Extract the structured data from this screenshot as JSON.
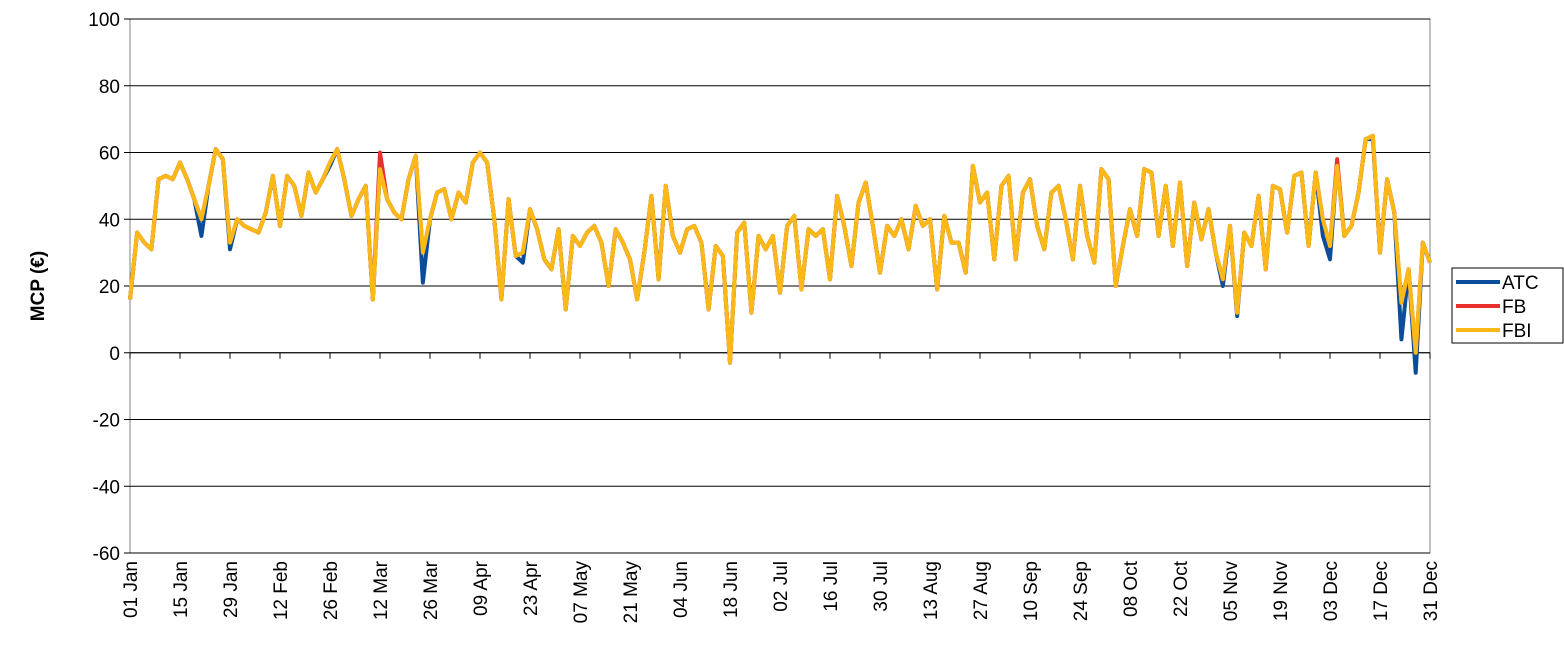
{
  "chart_data": {
    "type": "line",
    "y_label": "MCP (€)",
    "categories": [
      "01 Jan",
      null,
      null,
      null,
      null,
      null,
      null,
      "15 Jan",
      null,
      null,
      null,
      null,
      null,
      null,
      "29 Jan",
      null,
      null,
      null,
      null,
      null,
      null,
      "12 Feb",
      null,
      null,
      null,
      null,
      null,
      null,
      "26 Feb",
      null,
      null,
      null,
      null,
      null,
      null,
      "12 Mar",
      null,
      null,
      null,
      null,
      null,
      null,
      "26 Mar",
      null,
      null,
      null,
      null,
      null,
      null,
      "09 Apr",
      null,
      null,
      null,
      null,
      null,
      null,
      "23 Apr",
      null,
      null,
      null,
      null,
      null,
      null,
      "07 May",
      null,
      null,
      null,
      null,
      null,
      null,
      "21 May",
      null,
      null,
      null,
      null,
      null,
      null,
      "04 Jun",
      null,
      null,
      null,
      null,
      null,
      null,
      "18 Jun",
      null,
      null,
      null,
      null,
      null,
      null,
      "02 Jul",
      null,
      null,
      null,
      null,
      null,
      null,
      "16 Jul",
      null,
      null,
      null,
      null,
      null,
      null,
      "30 Jul",
      null,
      null,
      null,
      null,
      null,
      null,
      "13 Aug",
      null,
      null,
      null,
      null,
      null,
      null,
      "27 Aug",
      null,
      null,
      null,
      null,
      null,
      null,
      "10 Sep",
      null,
      null,
      null,
      null,
      null,
      null,
      "24 Sep",
      null,
      null,
      null,
      null,
      null,
      null,
      "08 Oct",
      null,
      null,
      null,
      null,
      null,
      null,
      "22 Oct",
      null,
      null,
      null,
      null,
      null,
      null,
      "05 Nov",
      null,
      null,
      null,
      null,
      null,
      null,
      "19 Nov",
      null,
      null,
      null,
      null,
      null,
      null,
      "03 Dec",
      null,
      null,
      null,
      null,
      null,
      null,
      "17 Dec",
      null,
      null,
      null,
      null,
      null,
      null,
      "31 Dec"
    ],
    "series": [
      {
        "name": "ATC",
        "color": "#0b4c9b",
        "values": [
          16,
          36,
          33,
          31,
          52,
          53,
          52,
          57,
          52,
          46,
          35,
          50,
          61,
          58,
          31,
          40,
          38,
          37,
          36,
          42,
          53,
          38,
          53,
          50,
          41,
          54,
          48,
          52,
          56,
          61,
          52,
          41,
          46,
          50,
          16,
          55,
          46,
          42,
          40,
          52,
          59,
          21,
          40,
          48,
          49,
          40,
          48,
          45,
          57,
          60,
          57,
          40,
          16,
          46,
          29,
          27,
          43,
          37,
          28,
          25,
          37,
          13,
          35,
          32,
          36,
          38,
          33,
          20,
          37,
          33,
          28,
          16,
          30,
          47,
          22,
          50,
          35,
          30,
          37,
          38,
          33,
          13,
          32,
          29,
          -3,
          36,
          39,
          12,
          35,
          31,
          35,
          18,
          38,
          41,
          19,
          37,
          35,
          37,
          22,
          47,
          38,
          26,
          45,
          51,
          38,
          24,
          38,
          35,
          40,
          31,
          44,
          38,
          40,
          19,
          41,
          33,
          33,
          24,
          56,
          45,
          48,
          28,
          50,
          53,
          28,
          48,
          52,
          38,
          31,
          48,
          50,
          40,
          28,
          50,
          35,
          27,
          55,
          52,
          20,
          32,
          43,
          35,
          55,
          54,
          35,
          50,
          32,
          51,
          26,
          45,
          34,
          43,
          30,
          20,
          38,
          11,
          36,
          32,
          47,
          25,
          50,
          49,
          36,
          53,
          54,
          32,
          54,
          35,
          28,
          57,
          35,
          38,
          48,
          64,
          64,
          30,
          52,
          42,
          4,
          25,
          -6,
          33,
          27
        ]
      },
      {
        "name": "FB",
        "color": "#e8312f",
        "values": [
          16,
          36,
          33,
          31,
          52,
          53,
          52,
          57,
          52,
          46,
          40,
          50,
          61,
          58,
          33,
          40,
          38,
          37,
          36,
          42,
          53,
          38,
          53,
          50,
          41,
          54,
          48,
          52,
          57,
          61,
          52,
          41,
          46,
          50,
          16,
          60,
          46,
          42,
          40,
          52,
          59,
          30,
          40,
          48,
          49,
          40,
          48,
          45,
          57,
          60,
          57,
          40,
          16,
          46,
          29,
          30,
          43,
          37,
          28,
          25,
          37,
          13,
          35,
          32,
          36,
          38,
          33,
          20,
          37,
          33,
          28,
          16,
          30,
          47,
          22,
          50,
          35,
          30,
          37,
          38,
          33,
          13,
          32,
          29,
          -3,
          36,
          39,
          12,
          35,
          31,
          35,
          18,
          38,
          41,
          19,
          37,
          35,
          37,
          22,
          47,
          38,
          26,
          45,
          51,
          38,
          24,
          38,
          35,
          40,
          31,
          44,
          38,
          40,
          19,
          41,
          33,
          33,
          24,
          56,
          45,
          48,
          28,
          50,
          53,
          28,
          48,
          52,
          38,
          31,
          48,
          50,
          40,
          28,
          50,
          35,
          27,
          55,
          52,
          20,
          32,
          43,
          35,
          55,
          54,
          35,
          50,
          32,
          51,
          26,
          45,
          34,
          43,
          30,
          22,
          38,
          12,
          36,
          32,
          47,
          25,
          50,
          49,
          36,
          53,
          54,
          32,
          54,
          40,
          32,
          58,
          35,
          38,
          48,
          64,
          65,
          30,
          52,
          42,
          15,
          25,
          0,
          33,
          27
        ]
      },
      {
        "name": "FBI",
        "color": "#fbb917",
        "values": [
          16,
          36,
          33,
          31,
          52,
          53,
          52,
          57,
          52,
          46,
          40,
          50,
          61,
          58,
          33,
          40,
          38,
          37,
          36,
          42,
          53,
          38,
          53,
          50,
          41,
          54,
          48,
          52,
          57,
          61,
          52,
          41,
          46,
          50,
          16,
          55,
          46,
          42,
          40,
          52,
          59,
          30,
          40,
          48,
          49,
          40,
          48,
          45,
          57,
          60,
          57,
          40,
          16,
          46,
          29,
          30,
          43,
          37,
          28,
          25,
          37,
          13,
          35,
          32,
          36,
          38,
          33,
          20,
          37,
          33,
          28,
          16,
          30,
          47,
          22,
          50,
          35,
          30,
          37,
          38,
          33,
          13,
          32,
          29,
          -3,
          36,
          39,
          12,
          35,
          31,
          35,
          18,
          38,
          41,
          19,
          37,
          35,
          37,
          22,
          47,
          38,
          26,
          45,
          51,
          38,
          24,
          38,
          35,
          40,
          31,
          44,
          38,
          40,
          19,
          41,
          33,
          33,
          24,
          56,
          45,
          48,
          28,
          50,
          53,
          28,
          48,
          52,
          38,
          31,
          48,
          50,
          40,
          28,
          50,
          35,
          27,
          55,
          52,
          20,
          32,
          43,
          35,
          55,
          54,
          35,
          50,
          32,
          51,
          26,
          45,
          34,
          43,
          30,
          22,
          38,
          12,
          36,
          32,
          47,
          25,
          50,
          49,
          36,
          53,
          54,
          32,
          54,
          40,
          32,
          56,
          35,
          38,
          48,
          64,
          65,
          30,
          52,
          42,
          15,
          25,
          0,
          33,
          27
        ]
      }
    ],
    "ylim": [
      -60,
      100
    ],
    "yticks": [
      -60,
      -40,
      -20,
      0,
      20,
      40,
      60,
      80,
      100
    ],
    "grid": true,
    "legend": "right"
  }
}
